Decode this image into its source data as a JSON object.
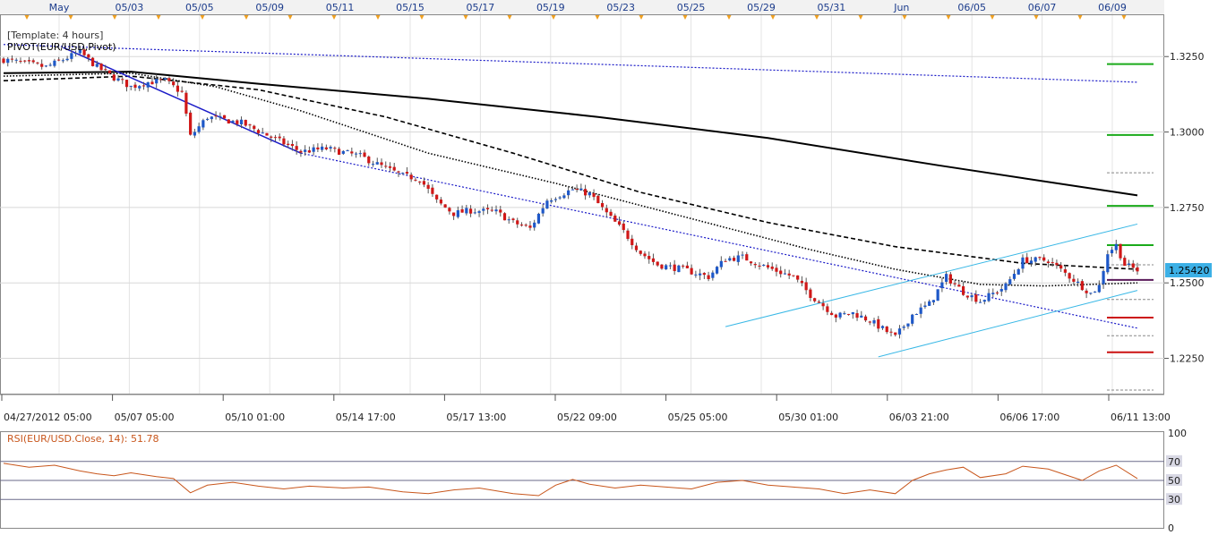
{
  "chart_data": {
    "type": "candlestick",
    "symbol": "EUR/USD",
    "template_label": "[Template: 4 hours]",
    "indicator_label": "PIVOT(EUR/USD,Pivot)",
    "price_axis": {
      "ticks": [
        "1.3250",
        "1.3000",
        "1.2750",
        "1.2500",
        "1.2250"
      ],
      "tick_values": [
        1.325,
        1.3,
        1.275,
        1.25,
        1.225
      ],
      "range": [
        1.213,
        1.339
      ]
    },
    "current_price": {
      "value": 1.2542,
      "label": "1.25420",
      "color": "#3cb0e6"
    },
    "top_dates": [
      "May",
      "05/03",
      "05/05",
      "05/09",
      "05/11",
      "05/15",
      "05/17",
      "05/19",
      "05/23",
      "05/25",
      "05/29",
      "05/31",
      "Jun",
      "06/05",
      "06/07",
      "06/09"
    ],
    "bottom_times": [
      "04/27/2012 05:00",
      "05/07 05:00",
      "05/10 01:00",
      "05/14 17:00",
      "05/17 13:00",
      "05/22 09:00",
      "05/25 05:00",
      "05/30 01:00",
      "06/03 21:00",
      "06/06 17:00",
      "06/11 13:00"
    ],
    "bar_count": 268,
    "close_path": [
      [
        0,
        1.324
      ],
      [
        10,
        1.3215
      ],
      [
        18,
        1.3265
      ],
      [
        22,
        1.3215
      ],
      [
        26,
        1.318
      ],
      [
        30,
        1.315
      ],
      [
        34,
        1.3165
      ],
      [
        38,
        1.317
      ],
      [
        42,
        1.313
      ],
      [
        44,
        1.2985
      ],
      [
        48,
        1.305
      ],
      [
        56,
        1.303
      ],
      [
        62,
        1.299
      ],
      [
        70,
        1.2935
      ],
      [
        76,
        1.2945
      ],
      [
        84,
        1.292
      ],
      [
        90,
        1.288
      ],
      [
        94,
        1.2855
      ],
      [
        98,
        1.2845
      ],
      [
        102,
        1.277
      ],
      [
        106,
        1.273
      ],
      [
        110,
        1.274
      ],
      [
        116,
        1.2735
      ],
      [
        120,
        1.27
      ],
      [
        124,
        1.268
      ],
      [
        128,
        1.2775
      ],
      [
        134,
        1.281
      ],
      [
        138,
        1.2795
      ],
      [
        142,
        1.273
      ],
      [
        146,
        1.267
      ],
      [
        150,
        1.26
      ],
      [
        154,
        1.256
      ],
      [
        160,
        1.2545
      ],
      [
        166,
        1.252
      ],
      [
        170,
        1.258
      ],
      [
        174,
        1.2585
      ],
      [
        180,
        1.255
      ],
      [
        186,
        1.252
      ],
      [
        190,
        1.246
      ],
      [
        196,
        1.239
      ],
      [
        200,
        1.24
      ],
      [
        204,
        1.2375
      ],
      [
        210,
        1.232
      ],
      [
        214,
        1.2395
      ],
      [
        218,
        1.243
      ],
      [
        222,
        1.252
      ],
      [
        226,
        1.247
      ],
      [
        230,
        1.244
      ],
      [
        236,
        1.249
      ],
      [
        240,
        1.2575
      ],
      [
        246,
        1.2575
      ],
      [
        252,
        1.251
      ],
      [
        256,
        1.2465
      ],
      [
        258,
        1.249
      ],
      [
        260,
        1.26
      ],
      [
        262,
        1.2625
      ],
      [
        264,
        1.256
      ],
      [
        267,
        1.2542
      ]
    ],
    "moving_averages": [
      {
        "style": "solid",
        "color": "#000000",
        "points": [
          [
            0,
            1.3195
          ],
          [
            30,
            1.32
          ],
          [
            60,
            1.316
          ],
          [
            100,
            1.311
          ],
          [
            140,
            1.305
          ],
          [
            180,
            1.298
          ],
          [
            220,
            1.289
          ],
          [
            267,
            1.279
          ]
        ]
      },
      {
        "style": "dashed",
        "color": "#000000",
        "points": [
          [
            0,
            1.317
          ],
          [
            30,
            1.3185
          ],
          [
            60,
            1.314
          ],
          [
            90,
            1.305
          ],
          [
            120,
            1.293
          ],
          [
            150,
            1.28
          ],
          [
            180,
            1.27
          ],
          [
            210,
            1.262
          ],
          [
            240,
            1.2565
          ],
          [
            267,
            1.2545
          ]
        ]
      },
      {
        "style": "dotted",
        "color": "#000000",
        "points": [
          [
            0,
            1.3185
          ],
          [
            30,
            1.3195
          ],
          [
            50,
            1.315
          ],
          [
            70,
            1.307
          ],
          [
            100,
            1.293
          ],
          [
            130,
            1.283
          ],
          [
            160,
            1.272
          ],
          [
            190,
            1.261
          ],
          [
            210,
            1.2545
          ],
          [
            230,
            1.2495
          ],
          [
            245,
            1.249
          ],
          [
            267,
            1.25
          ]
        ]
      }
    ],
    "trendlines": [
      {
        "color": "#1c1cc8",
        "width": 1.5,
        "dash": "",
        "from": [
          14,
          1.328
        ],
        "to": [
          70,
          1.293
        ]
      },
      {
        "color": "#1c1cc8",
        "width": 1.2,
        "dash": "2,2",
        "from": [
          70,
          1.293
        ],
        "to": [
          267,
          1.235
        ]
      },
      {
        "color": "#1c1cc8",
        "width": 1.2,
        "dash": "2,2",
        "from": [
          0,
          1.329
        ],
        "to": [
          267,
          1.3165
        ]
      },
      {
        "color": "#39b8e6",
        "width": 1,
        "dash": "",
        "from": [
          170,
          1.2355
        ],
        "to": [
          267,
          1.2695
        ]
      },
      {
        "color": "#39b8e6",
        "width": 1,
        "dash": "",
        "from": [
          206,
          1.2255
        ],
        "to": [
          267,
          1.2475
        ]
      }
    ],
    "pivot_levels": [
      {
        "value": 1.3225,
        "color": "#1aaa1a",
        "style": "solid"
      },
      {
        "value": 1.299,
        "color": "#1aaa1a",
        "style": "solid"
      },
      {
        "value": 1.2865,
        "color": "#888888",
        "style": "dashed"
      },
      {
        "value": 1.2755,
        "color": "#1aaa1a",
        "style": "solid"
      },
      {
        "value": 1.2625,
        "color": "#1aaa1a",
        "style": "solid"
      },
      {
        "value": 1.256,
        "color": "#888888",
        "style": "dashed"
      },
      {
        "value": 1.251,
        "color": "#5a1a5a",
        "style": "solid"
      },
      {
        "value": 1.2445,
        "color": "#888888",
        "style": "dashed"
      },
      {
        "value": 1.2385,
        "color": "#cc1111",
        "style": "solid"
      },
      {
        "value": 1.2325,
        "color": "#888888",
        "style": "dashed"
      },
      {
        "value": 1.227,
        "color": "#cc1111",
        "style": "solid"
      },
      {
        "value": 1.2145,
        "color": "#888888",
        "style": "dashed"
      }
    ],
    "colors": {
      "bull": "#1e58c8",
      "bear": "#d01818",
      "rsi": "#c8561c",
      "grid": "#d8d8d8"
    },
    "rsi": {
      "label": "RSI(EUR/USD.Close, 14): 51.78",
      "value": 51.78,
      "ticks": [
        "100",
        "70",
        "50",
        "30",
        "0"
      ],
      "tick_values": [
        100,
        70,
        50,
        30,
        0
      ],
      "levels": [
        70,
        50,
        30
      ],
      "path": [
        [
          0,
          68
        ],
        [
          6,
          64
        ],
        [
          12,
          66
        ],
        [
          18,
          60
        ],
        [
          22,
          57
        ],
        [
          26,
          55
        ],
        [
          30,
          58
        ],
        [
          36,
          54
        ],
        [
          40,
          52
        ],
        [
          44,
          37
        ],
        [
          48,
          45
        ],
        [
          54,
          48
        ],
        [
          60,
          44
        ],
        [
          66,
          41
        ],
        [
          72,
          44
        ],
        [
          80,
          42
        ],
        [
          86,
          43
        ],
        [
          94,
          38
        ],
        [
          100,
          36
        ],
        [
          106,
          40
        ],
        [
          112,
          42
        ],
        [
          120,
          36
        ],
        [
          126,
          34
        ],
        [
          130,
          45
        ],
        [
          134,
          51
        ],
        [
          138,
          46
        ],
        [
          144,
          42
        ],
        [
          150,
          45
        ],
        [
          156,
          43
        ],
        [
          162,
          41
        ],
        [
          168,
          48
        ],
        [
          174,
          50
        ],
        [
          180,
          45
        ],
        [
          186,
          43
        ],
        [
          192,
          41
        ],
        [
          198,
          36
        ],
        [
          204,
          40
        ],
        [
          210,
          36
        ],
        [
          214,
          50
        ],
        [
          218,
          57
        ],
        [
          222,
          61
        ],
        [
          226,
          64
        ],
        [
          230,
          53
        ],
        [
          236,
          57
        ],
        [
          240,
          65
        ],
        [
          246,
          62
        ],
        [
          250,
          56
        ],
        [
          254,
          50
        ],
        [
          258,
          60
        ],
        [
          262,
          66
        ],
        [
          267,
          52
        ]
      ]
    }
  }
}
